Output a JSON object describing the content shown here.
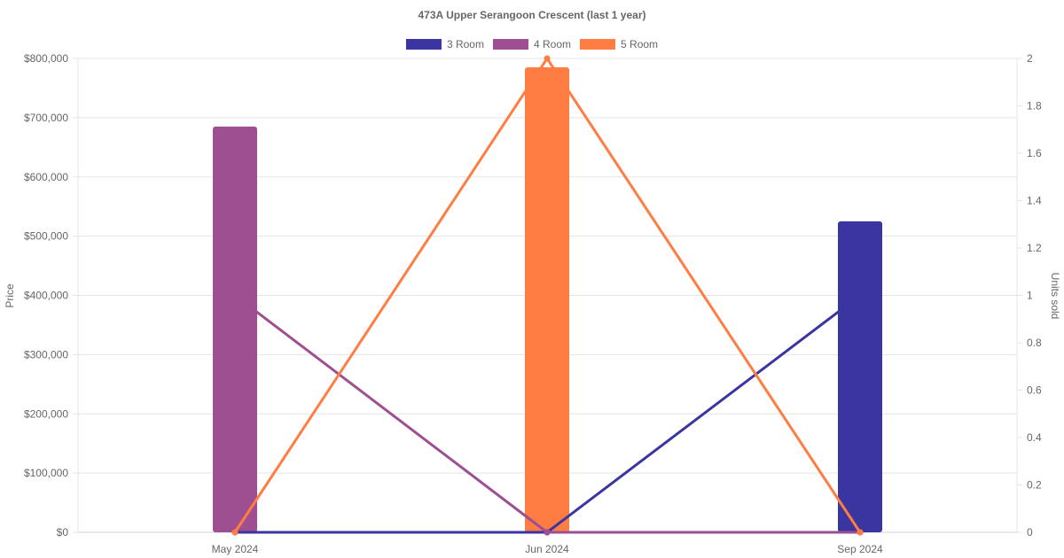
{
  "chart_data": {
    "type": "bar",
    "title": "473A Upper Serangoon Crescent (last 1 year)",
    "categories": [
      "May 2024",
      "Jun 2024",
      "Sep 2024"
    ],
    "y_left": {
      "label": "Price",
      "range": [
        0,
        800000
      ],
      "ticks": [
        "$0",
        "$100,000",
        "$200,000",
        "$300,000",
        "$400,000",
        "$500,000",
        "$600,000",
        "$700,000",
        "$800,000"
      ]
    },
    "y_right": {
      "label": "Units sold",
      "range": [
        0,
        2
      ],
      "ticks": [
        "0",
        "0.2",
        "0.4",
        "0.6",
        "0.8",
        "1",
        "1.2",
        "1.4",
        "1.6",
        "1.8",
        "2"
      ]
    },
    "grid": true,
    "legend_position": "top-center",
    "series": [
      {
        "name": "3 Room",
        "color": "#3a35a0",
        "price": [
          null,
          null,
          525000
        ],
        "units_sold": [
          0,
          0,
          1
        ]
      },
      {
        "name": "4 Room",
        "color": "#9e4f92",
        "price": [
          685000,
          null,
          null
        ],
        "units_sold": [
          1,
          0,
          0
        ]
      },
      {
        "name": "5 Room",
        "color": "#ff7d43",
        "price": [
          null,
          785000,
          null
        ],
        "units_sold": [
          0,
          2,
          0
        ]
      }
    ]
  }
}
